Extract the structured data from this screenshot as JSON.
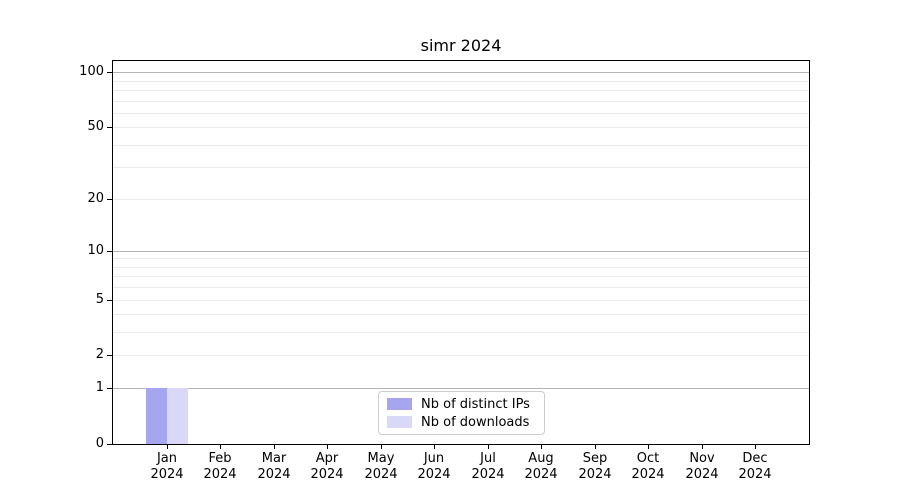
{
  "chart_data": {
    "type": "bar",
    "title": "simr 2024",
    "categories": [
      "Jan",
      "Feb",
      "Mar",
      "Apr",
      "May",
      "Jun",
      "Jul",
      "Aug",
      "Sep",
      "Oct",
      "Nov",
      "Dec"
    ],
    "x_tick_year": "2024",
    "series": [
      {
        "name": "Nb of distinct IPs",
        "color": "#a6a6ee",
        "values": [
          1,
          0,
          0,
          0,
          0,
          0,
          0,
          0,
          0,
          0,
          0,
          0
        ]
      },
      {
        "name": "Nb of downloads",
        "color": "#d9d9f7",
        "values": [
          1,
          0,
          0,
          0,
          0,
          0,
          0,
          0,
          0,
          0,
          0,
          0
        ]
      }
    ],
    "y_scale": "log1p",
    "ylim": [
      0,
      115
    ],
    "y_tick_values": [
      0,
      1,
      2,
      5,
      10,
      20,
      50,
      100
    ],
    "y_decade_gridlines": [
      1,
      10,
      100
    ],
    "y_minor_gridlines": [
      2,
      3,
      4,
      5,
      6,
      7,
      8,
      9,
      20,
      30,
      40,
      50,
      60,
      70,
      80,
      90
    ],
    "grid": "horizontal",
    "legend_position": "lower center",
    "colors": {
      "grid_decade": "#b4b4b4",
      "grid_minor": "#ebebeb",
      "axis": "#000000",
      "text": "#000000",
      "legend_border": "#cccccc",
      "background": "#ffffff"
    }
  }
}
